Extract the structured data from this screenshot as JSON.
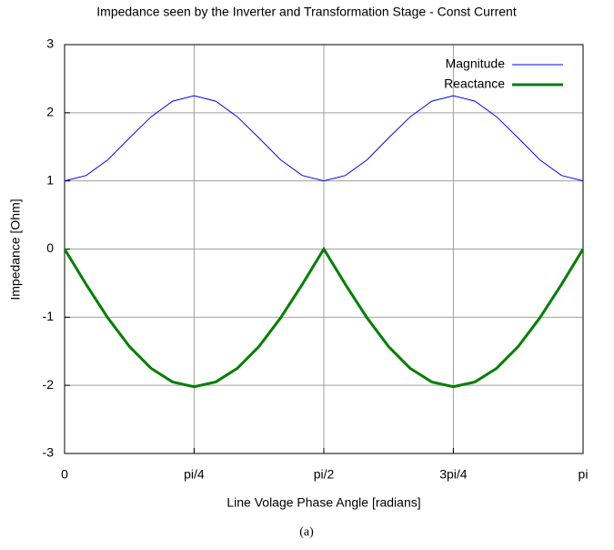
{
  "chart_data": {
    "type": "line",
    "title": "Impedance seen by the Inverter and Transformation Stage - Const Current",
    "xlabel": "Line Volage Phase Angle [radians]",
    "ylabel": "Impedance [Ohm]",
    "caption": "(a)",
    "x": [
      0,
      0.131,
      0.262,
      0.393,
      0.524,
      0.654,
      0.785,
      0.916,
      1.047,
      1.178,
      1.309,
      1.44,
      1.571,
      1.702,
      1.833,
      1.963,
      2.094,
      2.225,
      2.356,
      2.487,
      2.618,
      2.749,
      2.88,
      3.011,
      3.142
    ],
    "series": [
      {
        "name": "Magnitude",
        "color": "#0000ff",
        "line_width": 1,
        "values": [
          1,
          1.08,
          1.31,
          1.63,
          1.94,
          2.17,
          2.25,
          2.17,
          1.94,
          1.63,
          1.31,
          1.08,
          1,
          1.08,
          1.31,
          1.63,
          1.94,
          2.17,
          2.25,
          2.17,
          1.94,
          1.63,
          1.31,
          1.08,
          1
        ]
      },
      {
        "name": "Reactance",
        "color": "#008000",
        "line_width": 3,
        "values": [
          0,
          -0.52,
          -1.01,
          -1.43,
          -1.75,
          -1.95,
          -2.02,
          -1.95,
          -1.75,
          -1.43,
          -1.01,
          -0.52,
          0,
          -0.52,
          -1.01,
          -1.43,
          -1.75,
          -1.95,
          -2.02,
          -1.95,
          -1.75,
          -1.43,
          -1.01,
          -0.52,
          0
        ]
      }
    ],
    "xlim": [
      0,
      3.142
    ],
    "ylim": [
      -3,
      3
    ],
    "xticks": [
      0,
      {
        "value": 0.785,
        "label": "pi/4"
      },
      {
        "value": 1.571,
        "label": "pi/2"
      },
      {
        "value": 2.356,
        "label": "3pi/4"
      },
      {
        "value": 3.142,
        "label": "pi"
      }
    ],
    "yticks": [
      -3,
      -2,
      -1,
      0,
      1,
      2,
      3
    ],
    "grid": true,
    "legend": "top-right"
  }
}
